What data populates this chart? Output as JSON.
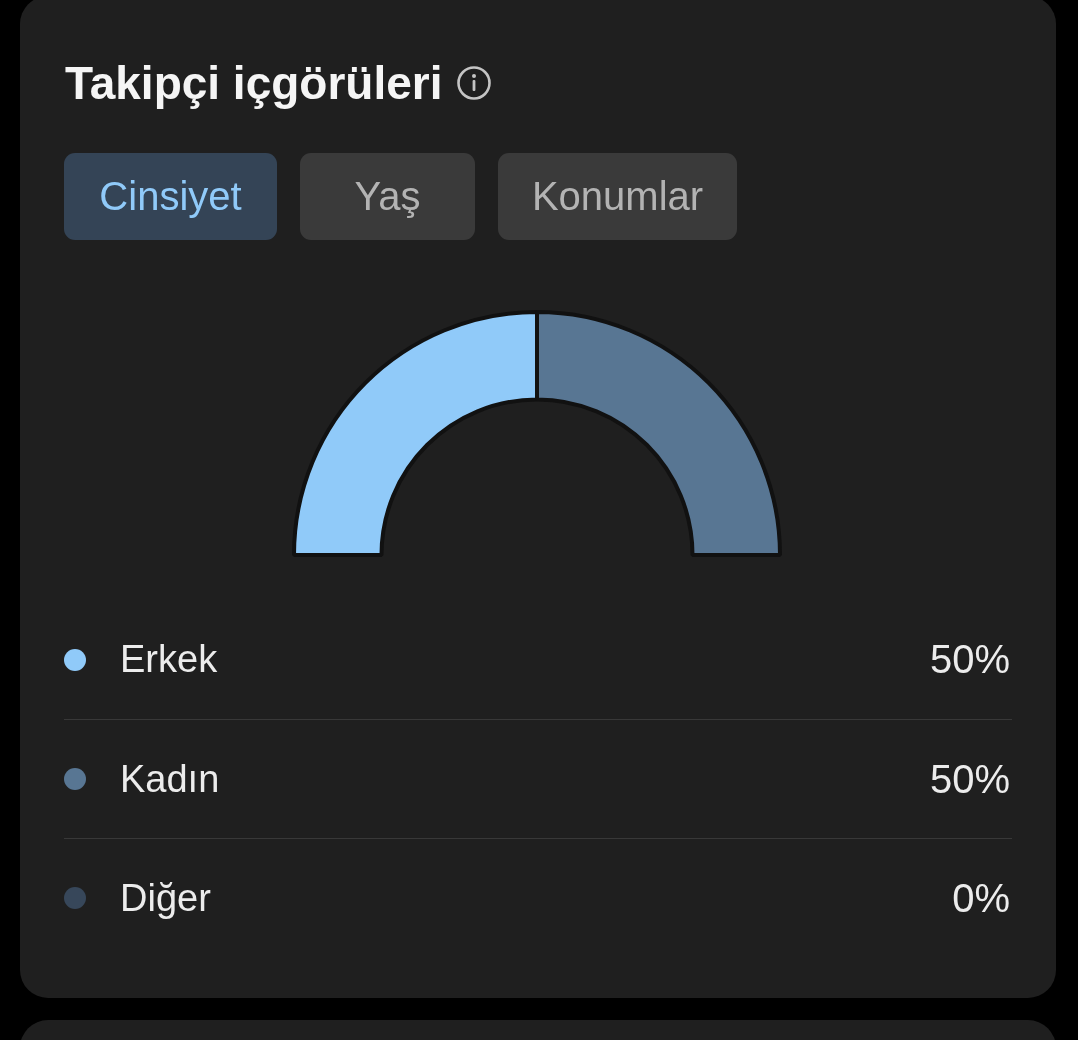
{
  "chart_data": {
    "type": "donut",
    "title": "Takipçi içgörüleri",
    "annotations": [
      "Cinsiyet",
      "Yaş",
      "Konumlar"
    ],
    "categories": [
      "Erkek",
      "Kadın",
      "Diğer"
    ],
    "values": [
      50,
      50,
      0
    ],
    "colors": [
      "#90caf9",
      "#587693",
      "#37475a"
    ],
    "value_labels": [
      "50%",
      "50%",
      "0%"
    ],
    "legend": "bottom"
  }
}
